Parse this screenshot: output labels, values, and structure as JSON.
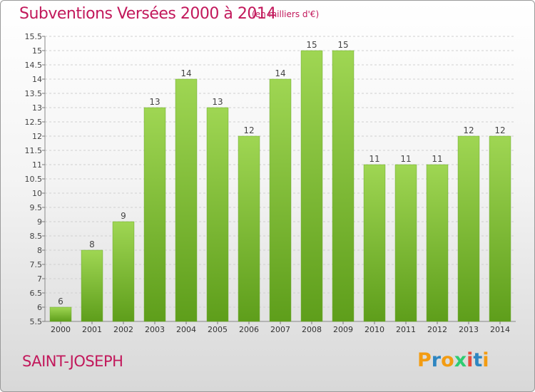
{
  "header": {
    "title": "Subventions Versées 2000 à 2014",
    "subtitle": "(en milliers d'€)"
  },
  "footer": {
    "commune": "SAINT-JOSEPH",
    "logo_text": "Proxiti"
  },
  "colors": {
    "accent": "#c2185b",
    "bar_top": "#9fd653",
    "bar_bottom": "#5e9e1b",
    "logo_letters": [
      "#f39c12",
      "#2e86c1",
      "#f39c12",
      "#2ecc71",
      "#e74c3c",
      "#2e86c1",
      "#f39c12"
    ]
  },
  "chart_data": {
    "type": "bar",
    "title": "Subventions Versées 2000 à 2014",
    "subtitle": "(en milliers d'€)",
    "categories": [
      "2000",
      "2001",
      "2002",
      "2003",
      "2004",
      "2005",
      "2006",
      "2007",
      "2008",
      "2009",
      "2010",
      "2011",
      "2012",
      "2013",
      "2014"
    ],
    "values": [
      6,
      8,
      9,
      13,
      14,
      13,
      12,
      14,
      15,
      15,
      11,
      11,
      11,
      12,
      12
    ],
    "data_labels": [
      "6",
      "8",
      "9",
      "13",
      "14",
      "13",
      "12",
      "14",
      "15",
      "15",
      "11",
      "11",
      "11",
      "12",
      "12"
    ],
    "ylim": [
      5.5,
      15.5
    ],
    "yticks": [
      "5.5",
      "6",
      "6.5",
      "7",
      "7.5",
      "8",
      "8.5",
      "9",
      "9.5",
      "10",
      "10.5",
      "11",
      "11.5",
      "12",
      "12.5",
      "13",
      "13.5",
      "14",
      "14.5",
      "15",
      "15.5"
    ],
    "ytick_values": [
      5.5,
      6,
      6.5,
      7,
      7.5,
      8,
      8.5,
      9,
      9.5,
      10,
      10.5,
      11,
      11.5,
      12,
      12.5,
      13,
      13.5,
      14,
      14.5,
      15,
      15.5
    ],
    "grid": true,
    "xlabel": "",
    "ylabel": ""
  }
}
